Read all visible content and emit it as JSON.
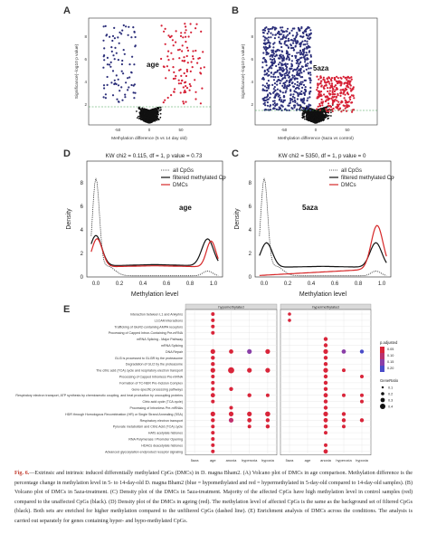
{
  "panels": {
    "A": {
      "letter": "A",
      "title": "age",
      "xlabel": "Methylation difference (5 vs 14 day old)",
      "ylabel": "Significance(−log10 p value)",
      "yticks": [
        "2",
        "4",
        "6",
        "8"
      ],
      "xticks": [
        "-50",
        "0",
        "50"
      ]
    },
    "B": {
      "letter": "B",
      "title": "5aza",
      "xlabel": "Methylation difference (5aza vs control)",
      "ylabel": "Significance(−log10 p value)",
      "yticks": [
        "2",
        "4",
        "6",
        "8"
      ],
      "xticks": [
        "-50",
        "0",
        "50"
      ]
    },
    "D": {
      "letter": "D",
      "stat": "KW chi2 = 0.115, df = 1, p value = 0.73",
      "title": "age",
      "xlabel": "Methylation level",
      "ylabel": "Density",
      "yticks": [
        "0",
        "2",
        "4",
        "6",
        "8"
      ],
      "xticks": [
        "0.0",
        "0.2",
        "0.4",
        "0.6",
        "0.8",
        "1.0"
      ]
    },
    "C": {
      "letter": "C",
      "stat": "KW chi2 = 5350, df = 1, p value = 0",
      "title": "5aza",
      "xlabel": "Methylation level",
      "ylabel": "Density",
      "yticks": [
        "0",
        "2",
        "4",
        "6",
        "8"
      ],
      "xticks": [
        "0.0",
        "0.2",
        "0.4",
        "0.6",
        "0.8",
        "1.0"
      ]
    },
    "E": {
      "letter": "E",
      "facet_left": "hypomethylated",
      "facet_right": "hypermethylated"
    }
  },
  "legend_density": {
    "items": [
      {
        "label": "all CpGs",
        "style": "dotted",
        "color": "#333333"
      },
      {
        "label": "filtered methylated CpGs",
        "style": "solid",
        "color": "#111111"
      },
      {
        "label": "DMCs",
        "style": "solid",
        "color": "#d62728"
      }
    ]
  },
  "colors": {
    "hypo": "#2c2f7a",
    "hyper": "#d62035",
    "ns": "#111111",
    "grid": "#e3e3e3"
  },
  "enrichment": {
    "pathways": [
      "Interaction between L1 and Ankyrins",
      "L1CAM interactions",
      "Trafficking of GluR2-containing AMPA receptors",
      "Processing of Capped Intron-Containing Pre-mRNA",
      "mRNA Splicing - Major Pathway",
      "mRNA Splicing",
      "DNA Repair",
      "GLI3 is processed to GLI3R by the proteasome",
      "Degradation of GLI2 by the proteasome",
      "The citric acid (TCA) cycle and respiratory electron transport",
      "Processing of Capped Intronless Pre-mRNA",
      "Formation of TC-NER Pre-Incision Complex",
      "Gene-specific processing pathways",
      "Respiratory electron transport, ATP synthesis by chemiosmotic coupling, and heat production by uncoupling proteins",
      "Citric acid cycle (TCA cycle)",
      "Processing of Intronless Pre-mRNAs",
      "HDR through Homologous Recombination (HR) or Single Strand Annealing (SSA)",
      "Respiratory electron transport",
      "Pyruvate metabolism and Citric Acid (TCA) cycle",
      "HATs acetylate histones",
      "RNA Polymerase I Promoter Opening",
      "HDACs deacetylate histones",
      "Advanced glycosylation endproduct receptor signaling"
    ],
    "xcats": [
      "5aza",
      "age",
      "anoxia",
      "hyperoxia",
      "hypoxia"
    ],
    "legend_title_p": "p.adjusted",
    "legend_p": [
      "0.05",
      "0.10",
      "0.15",
      "0.20"
    ],
    "legend_title_gr": "GeneRatio",
    "legend_gr": [
      "0.1",
      "0.2",
      "0.3",
      "0.4"
    ]
  },
  "caption": {
    "lead": "Fig. 6.",
    "text": "—Extrinsic and intrinsic induced differentially methylated CpGs (DMCs) in D. magna Bham2. (A) Volcano plot of DMCs in age comparison. Methylation difference is the percentage change in methylation level in 5- to 14-day-old D. magna Bham2 (blue = hypomethylated and red = hypermethylated in 5-day-old compared to 14-day-old samples). (B) Volcano plot of DMCs in 5aza-treatment. (C) Density plot of the DMCs in 5aza-treatment. Majority of the affected CpGs have high methylation level in control samples (red) compared to the unaffected CpGs (black). (D) Density plot of the DMCs in ageing (red). The methylation level of affected CpGs is the same as the background set of filtered CpGs (black). Both sets are enriched for higher methylation compared to the unfiltered CpGs (dashed line). (E) Enrichment analysis of DMCs across the conditions. The analysis is carried out separately for genes containing hyper- and hypo-methylated CpGs."
  }
}
